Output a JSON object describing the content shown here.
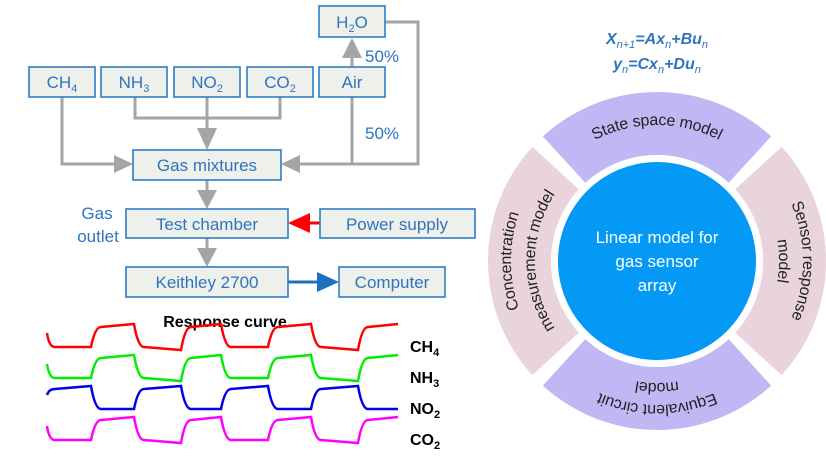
{
  "flowchart": {
    "water": {
      "main": "H",
      "sub": "2",
      "rest": "O"
    },
    "gases": [
      {
        "main": "CH",
        "sub": "4"
      },
      {
        "main": "NH",
        "sub": "3"
      },
      {
        "main": "NO",
        "sub": "2"
      },
      {
        "main": "CO",
        "sub": "2"
      }
    ],
    "air": "Air",
    "pct_top": "50%",
    "pct_bottom": "50%",
    "gas_mixtures": "Gas mixtures",
    "test_chamber": "Test chamber",
    "gas_outlet": [
      "Gas",
      "outlet"
    ],
    "power_supply": "Power supply",
    "keithley": "Keithley 2700",
    "computer": "Computer",
    "colors": {
      "box_border": "#2f7cc4",
      "box_fill": "#eef0ec",
      "arrow": "#a5a5a5",
      "power_arrow": "#ff0000",
      "data_arrow": "#1f6fc0"
    }
  },
  "response": {
    "title": "Response curve",
    "curves": [
      {
        "main": "CH",
        "sub": "4",
        "color": "#ff0000"
      },
      {
        "main": "NH",
        "sub": "3",
        "color": "#00ee00"
      },
      {
        "main": "NO",
        "sub": "2",
        "color": "#0000ee"
      },
      {
        "main": "CO",
        "sub": "2",
        "color": "#ff00ff"
      }
    ]
  },
  "equations": {
    "line1": [
      {
        "t": "X"
      },
      {
        "s": "n+1"
      },
      {
        "t": "=Ax"
      },
      {
        "s": "n"
      },
      {
        "t": "+Bu"
      },
      {
        "s": "n"
      }
    ],
    "line2": [
      {
        "t": "y"
      },
      {
        "s": "n"
      },
      {
        "t": "=Cx"
      },
      {
        "s": "n"
      },
      {
        "t": "+Du"
      },
      {
        "s": "n"
      }
    ]
  },
  "wheel": {
    "center": [
      "Linear model for",
      "gas sensor",
      "array"
    ],
    "top": "State space model",
    "right": [
      "Sensor response",
      "model"
    ],
    "bottom": [
      "Equivalent circuit",
      "model"
    ],
    "left": [
      "Concentration",
      "measurement model"
    ],
    "colors": {
      "center": "#0399f5",
      "top_bottom": "#c0b8f4",
      "left_right": "#e9d3dc"
    }
  }
}
